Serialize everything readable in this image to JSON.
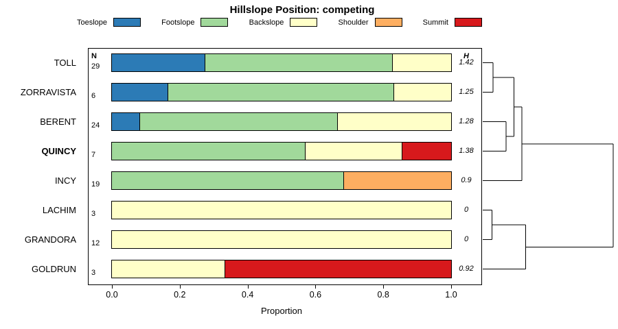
{
  "chart_data": {
    "type": "bar",
    "variant": "stacked-horizontal-proportion-with-dendrogram",
    "title": "Hillslope Position: competing",
    "xlabel": "Proportion",
    "xlim": [
      0,
      1
    ],
    "x_ticks": [
      "0.0",
      "0.2",
      "0.4",
      "0.6",
      "0.8",
      "1.0"
    ],
    "legend_position": "top",
    "grid": false,
    "categories": [
      "Toeslope",
      "Footslope",
      "Backslope",
      "Shoulder",
      "Summit"
    ],
    "colors": {
      "Toeslope": "#2C7BB6",
      "Footslope": "#A1D99B",
      "Backslope": "#FFFFC8",
      "Shoulder": "#FDAE61",
      "Summit": "#D7191C"
    },
    "columns": {
      "n_header": "N",
      "h_header": "H"
    },
    "rows": [
      {
        "label": "TOLL",
        "bold": false,
        "n": "29",
        "h": "1.42",
        "segments": [
          [
            "Toeslope",
            0.276
          ],
          [
            "Footslope",
            0.552
          ],
          [
            "Backslope",
            0.172
          ]
        ]
      },
      {
        "label": "ZORRAVISTA",
        "bold": false,
        "n": "6",
        "h": "1.25",
        "segments": [
          [
            "Toeslope",
            0.167
          ],
          [
            "Footslope",
            0.666
          ],
          [
            "Backslope",
            0.167
          ]
        ]
      },
      {
        "label": "BERENT",
        "bold": false,
        "n": "24",
        "h": "1.28",
        "segments": [
          [
            "Toeslope",
            0.083
          ],
          [
            "Footslope",
            0.583
          ],
          [
            "Backslope",
            0.334
          ]
        ]
      },
      {
        "label": "QUINCY",
        "bold": true,
        "n": "7",
        "h": "1.38",
        "segments": [
          [
            "Footslope",
            0.571
          ],
          [
            "Backslope",
            0.286
          ],
          [
            "Summit",
            0.143
          ]
        ]
      },
      {
        "label": "INCY",
        "bold": false,
        "n": "19",
        "h": "0.9",
        "segments": [
          [
            "Footslope",
            0.684
          ],
          [
            "Shoulder",
            0.316
          ]
        ]
      },
      {
        "label": "LACHIM",
        "bold": false,
        "n": "3",
        "h": "0",
        "segments": [
          [
            "Backslope",
            1.0
          ]
        ]
      },
      {
        "label": "GRANDORA",
        "bold": false,
        "n": "12",
        "h": "0",
        "segments": [
          [
            "Backslope",
            1.0
          ]
        ]
      },
      {
        "label": "GOLDRUN",
        "bold": false,
        "n": "3",
        "h": "0.92",
        "segments": [
          [
            "Backslope",
            0.333
          ],
          [
            "Summit",
            0.667
          ]
        ]
      }
    ],
    "dendrogram": {
      "leaves_order": [
        "TOLL",
        "ZORRAVISTA",
        "BERENT",
        "QUINCY",
        "INCY",
        "LACHIM",
        "GRANDORA",
        "GOLDRUN"
      ],
      "merges": [
        {
          "a": "L0",
          "b": "L1",
          "h": 0.08
        },
        {
          "a": "L2",
          "b": "L3",
          "h": 0.18
        },
        {
          "a": "M0",
          "b": "M1",
          "h": 0.24
        },
        {
          "a": "M2",
          "b": "L4",
          "h": 0.3
        },
        {
          "a": "L5",
          "b": "L6",
          "h": 0.07
        },
        {
          "a": "M4",
          "b": "L7",
          "h": 0.33
        },
        {
          "a": "M3",
          "b": "M5",
          "h": 1.0
        }
      ]
    }
  }
}
